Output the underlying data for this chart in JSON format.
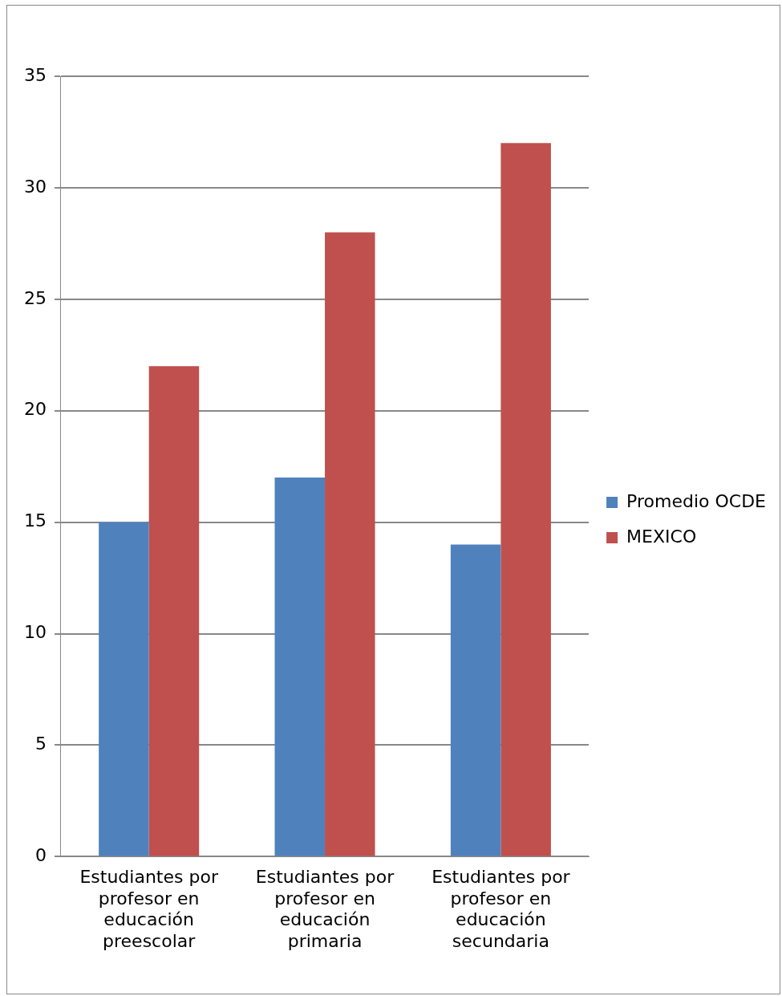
{
  "chart_data": {
    "type": "bar",
    "categories": [
      "Estudiantes por profesor en educación preescolar",
      "Estudiantes por profesor en educación primaria",
      "Estudiantes por profesor en educación secundaria"
    ],
    "series": [
      {
        "name": "Promedio OCDE",
        "color": "#4f81bd",
        "values": [
          15,
          17,
          14
        ]
      },
      {
        "name": "MEXICO",
        "color": "#c0504d",
        "values": [
          22,
          28,
          32
        ]
      }
    ],
    "ylim": [
      0,
      35
    ],
    "yticks": [
      0,
      5,
      10,
      15,
      20,
      25,
      30,
      35
    ],
    "grid": "y",
    "legend": "right"
  }
}
